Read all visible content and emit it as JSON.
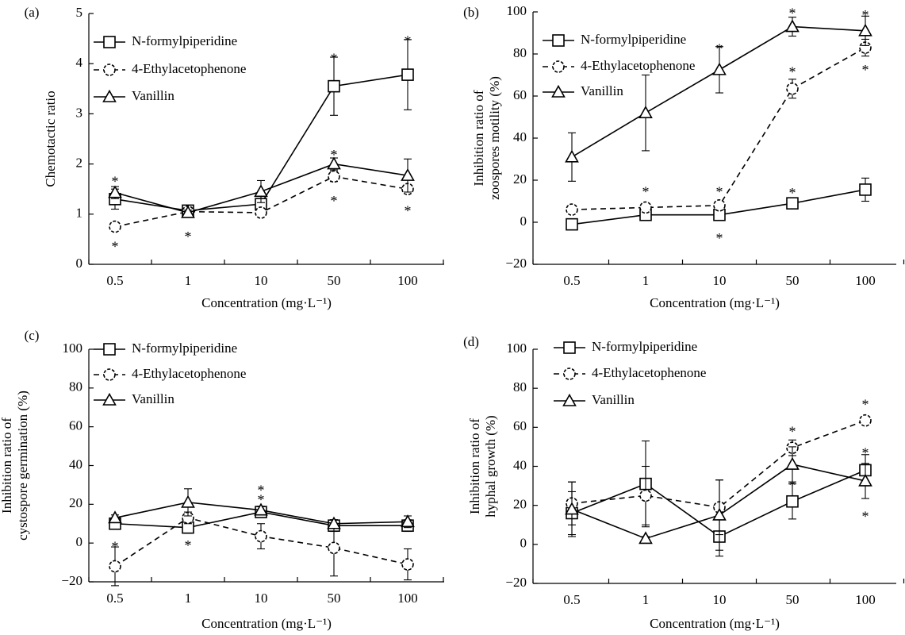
{
  "chart_data": [
    {
      "panel": "(a)",
      "type": "line",
      "categories": [
        "0.5",
        "1",
        "10",
        "50",
        "100"
      ],
      "xlabel": "Concentration (mg·L⁻¹)",
      "ylabel": "Chemotactic ratio",
      "ylabel_lines": [
        "Chemotactic ratio"
      ],
      "ylim": [
        0,
        5
      ],
      "yticks": [
        0,
        1,
        2,
        3,
        4,
        5
      ],
      "legend_position": "top-left",
      "series": [
        {
          "name": "N-formylpiperidine",
          "marker": "square",
          "dashed": false,
          "values": [
            1.3,
            1.07,
            1.2,
            3.55,
            3.78
          ],
          "errors": [
            0.2,
            0.05,
            0.1,
            0.58,
            0.7
          ]
        },
        {
          "name": "4-Ethylacetophenone",
          "marker": "circle",
          "dashed": true,
          "values": [
            0.75,
            1.05,
            1.03,
            1.75,
            1.5
          ],
          "errors": [
            0.05,
            0.05,
            0.03,
            0.1,
            0.08
          ]
        },
        {
          "name": "Vanillin",
          "marker": "triangle",
          "dashed": false,
          "values": [
            1.43,
            1.03,
            1.45,
            2.0,
            1.77
          ],
          "errors": [
            0.12,
            0.05,
            0.22,
            0.12,
            0.33
          ]
        }
      ],
      "annotations": [
        {
          "text": "*",
          "cat": 0,
          "y": 1.72
        },
        {
          "text": "*",
          "cat": 0,
          "y": 0.42
        },
        {
          "text": "*",
          "cat": 1,
          "y": 0.62
        },
        {
          "text": "*",
          "cat": 3,
          "y": 4.17
        },
        {
          "text": "*",
          "cat": 3,
          "y": 2.25
        },
        {
          "text": "*",
          "cat": 3,
          "y": 1.33
        },
        {
          "text": "*",
          "cat": 4,
          "y": 4.52
        },
        {
          "text": "*",
          "cat": 4,
          "y": 1.13
        }
      ]
    },
    {
      "panel": "(b)",
      "type": "line",
      "categories": [
        "0.5",
        "1",
        "10",
        "50",
        "100"
      ],
      "xlabel": "Concentration (mg·L⁻¹)",
      "ylabel": "Inhibition ratio of zoospores motility (%)",
      "ylabel_lines": [
        "Inhibition ratio of",
        "zoospores motility (%)"
      ],
      "ylim": [
        -20,
        100
      ],
      "yticks": [
        -20,
        0,
        20,
        40,
        60,
        80,
        100
      ],
      "legend_position": "top-left",
      "series": [
        {
          "name": "N-formylpiperidine",
          "marker": "square",
          "dashed": false,
          "values": [
            -1,
            3.5,
            3.5,
            9,
            15.5
          ],
          "errors": [
            2,
            2,
            2,
            2.5,
            5.5
          ]
        },
        {
          "name": "4-Ethylacetophenone",
          "marker": "circle",
          "dashed": true,
          "values": [
            6,
            7,
            8,
            63.5,
            83
          ],
          "errors": [
            0.5,
            1.5,
            1.5,
            4.5,
            4
          ]
        },
        {
          "name": "Vanillin",
          "marker": "triangle",
          "dashed": false,
          "values": [
            31,
            52,
            72.5,
            93,
            91
          ],
          "errors": [
            11.5,
            18,
            11,
            4.5,
            7
          ]
        }
      ],
      "annotations": [
        {
          "text": "*",
          "cat": 1,
          "y": 16
        },
        {
          "text": "*",
          "cat": 2,
          "y": 16
        },
        {
          "text": "*",
          "cat": 2,
          "y": 84
        },
        {
          "text": "*",
          "cat": 2,
          "y": -6
        },
        {
          "text": "*",
          "cat": 3,
          "y": 15.5
        },
        {
          "text": "*",
          "cat": 3,
          "y": 73
        },
        {
          "text": "*",
          "cat": 3,
          "y": 101
        },
        {
          "text": "*",
          "cat": 4,
          "y": 100
        },
        {
          "text": "*",
          "cat": 4,
          "y": 74
        }
      ]
    },
    {
      "panel": "(c)",
      "type": "line",
      "categories": [
        "0.5",
        "1",
        "10",
        "50",
        "100"
      ],
      "xlabel": "Concentration (mg·L⁻¹)",
      "ylabel": "Inhibition ratio of cystospore germination (%)",
      "ylabel_lines": [
        "Inhibition ratio of",
        "cystospore germination (%)"
      ],
      "ylim": [
        -20,
        100
      ],
      "yticks": [
        -20,
        0,
        20,
        40,
        60,
        80,
        100
      ],
      "legend_position": "top-left",
      "series": [
        {
          "name": "N-formylpiperidine",
          "marker": "square",
          "dashed": false,
          "values": [
            10,
            8,
            16,
            9,
            9
          ],
          "errors": [
            2,
            3,
            2,
            3,
            3
          ]
        },
        {
          "name": "4-Ethylacetophenone",
          "marker": "circle",
          "dashed": true,
          "values": [
            -12,
            13,
            3.5,
            -2.5,
            -11
          ],
          "errors": [
            10,
            3,
            6.5,
            14.5,
            8
          ]
        },
        {
          "name": "Vanillin",
          "marker": "triangle",
          "dashed": false,
          "values": [
            13,
            21,
            17,
            10,
            11
          ],
          "errors": [
            1.5,
            7,
            2,
            2,
            3
          ]
        }
      ],
      "annotations": [
        {
          "text": "*",
          "cat": 0,
          "y": 0
        },
        {
          "text": "*",
          "cat": 1,
          "y": 0.5
        },
        {
          "text": "*",
          "cat": 2,
          "y": 29
        },
        {
          "text": "*",
          "cat": 2,
          "y": 24
        }
      ]
    },
    {
      "panel": "(d)",
      "type": "line",
      "categories": [
        "0.5",
        "1",
        "10",
        "50",
        "100"
      ],
      "xlabel": "Concentration (mg·L⁻¹)",
      "ylabel": "Inhibition ratio of hyphal growth (%)",
      "ylabel_lines": [
        "Inhibition ratio of",
        "hyphal growth (%)"
      ],
      "ylim": [
        -20,
        100
      ],
      "yticks": [
        -20,
        0,
        20,
        40,
        60,
        80,
        100
      ],
      "legend_position": "top-left",
      "series": [
        {
          "name": "N-formylpiperidine",
          "marker": "square",
          "dashed": false,
          "values": [
            16,
            31,
            4,
            22,
            38
          ],
          "errors": [
            11,
            22,
            10,
            9,
            8
          ]
        },
        {
          "name": "4-Ethylacetophenone",
          "marker": "circle",
          "dashed": true,
          "values": [
            21,
            25,
            19,
            49.5,
            63.5
          ],
          "errors": [
            11,
            15,
            14,
            4,
            1
          ]
        },
        {
          "name": "Vanillin",
          "marker": "triangle",
          "dashed": false,
          "values": [
            18,
            3,
            15,
            41,
            32.5
          ],
          "errors": [
            14,
            1,
            18,
            9,
            9
          ]
        }
      ],
      "annotations": [
        {
          "text": "*",
          "cat": 3,
          "y": 59.5
        },
        {
          "text": "*",
          "cat": 3,
          "y": 32
        },
        {
          "text": "*",
          "cat": 4,
          "y": 73.5
        },
        {
          "text": "*",
          "cat": 4,
          "y": 48.5
        },
        {
          "text": "*",
          "cat": 4,
          "y": 16
        }
      ]
    }
  ]
}
